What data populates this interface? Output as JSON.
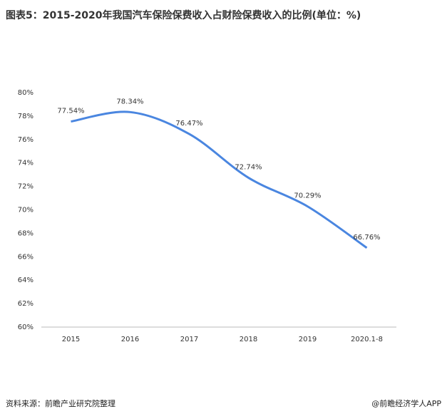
{
  "chart_data": {
    "type": "line",
    "title": "图表5：2015-2020年我国汽车保险保费收入占财险保费收入的比例(单位：%)",
    "categories": [
      "2015",
      "2016",
      "2017",
      "2018",
      "2019",
      "2020.1-8"
    ],
    "values": [
      77.54,
      78.34,
      76.47,
      72.74,
      70.29,
      66.76
    ],
    "value_labels": [
      "77.54%",
      "78.34%",
      "76.47%",
      "72.74%",
      "70.29%",
      "66.76%"
    ],
    "color": "#4a86e0",
    "ylim": [
      60,
      80
    ],
    "yticks": [
      {
        "value": 60,
        "label": "60%"
      },
      {
        "value": 62,
        "label": "62%"
      },
      {
        "value": 64,
        "label": "64%"
      },
      {
        "value": 66,
        "label": "66%"
      },
      {
        "value": 68,
        "label": "68%"
      },
      {
        "value": 70,
        "label": "70%"
      },
      {
        "value": 72,
        "label": "72%"
      },
      {
        "value": 74,
        "label": "74%"
      },
      {
        "value": 76,
        "label": "76%"
      },
      {
        "value": 78,
        "label": "78%"
      },
      {
        "value": 80,
        "label": "80%"
      }
    ],
    "grid": false,
    "source": "资料来源：前瞻产业研究院整理",
    "credit": "@前瞻经济学人APP"
  }
}
